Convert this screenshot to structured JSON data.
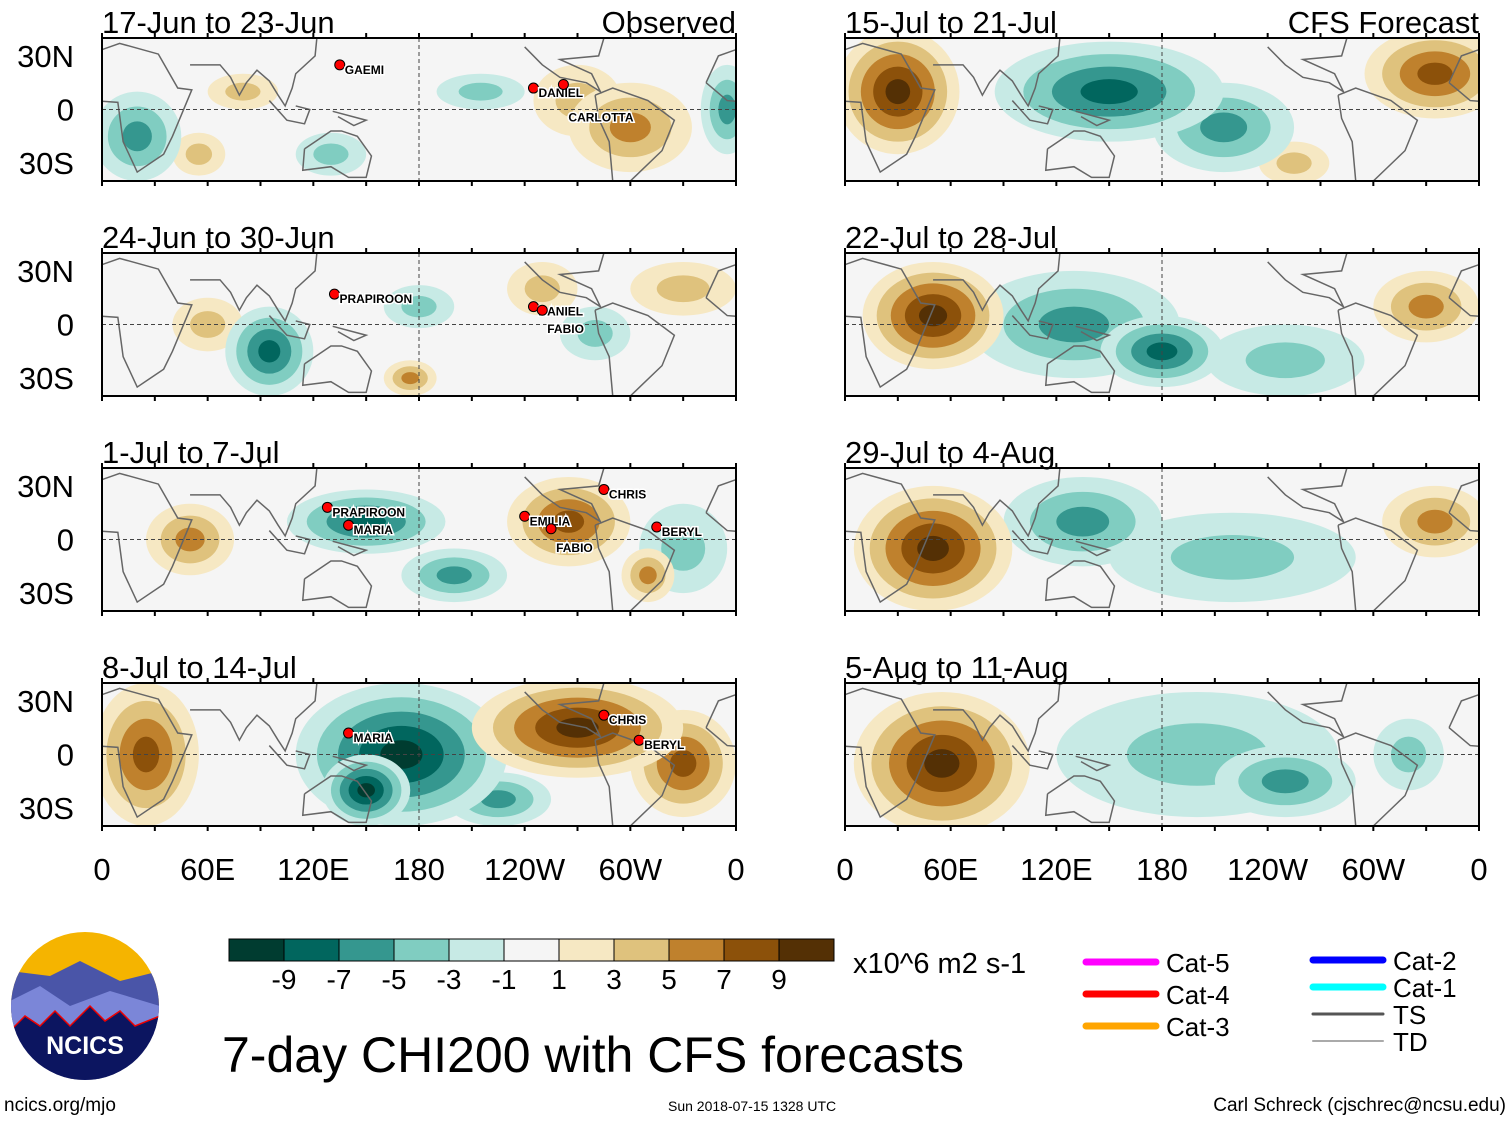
{
  "title": "7-day CHI200 with CFS forecasts",
  "site": "ncics.org/mjo",
  "timestamp": "Sun 2018-07-15 1328 UTC",
  "author": "Carl Schreck (cjschrec@ncsu.edu)",
  "logo_text": "NCICS",
  "units": "x10^6 m2 s-1",
  "left_header": "Observed",
  "right_header": "CFS Forecast",
  "lat_labels": [
    "30N",
    "0",
    "30S"
  ],
  "lon_labels": [
    "0",
    "60E",
    "120E",
    "180",
    "120W",
    "60W",
    "0"
  ],
  "colorbar": {
    "labels": [
      "-9",
      "-7",
      "-5",
      "-3",
      "-1",
      "1",
      "3",
      "5",
      "7",
      "9"
    ],
    "colors": [
      "#003c30",
      "#01665e",
      "#35978f",
      "#80cdc1",
      "#c7eae5",
      "#f5f5f5",
      "#f6e8c3",
      "#dfc27d",
      "#bf812d",
      "#8c510a",
      "#543005"
    ]
  },
  "legend": [
    {
      "label": "Cat-5",
      "color": "#ff00ff"
    },
    {
      "label": "Cat-4",
      "color": "#ff0000"
    },
    {
      "label": "Cat-3",
      "color": "#ffa500"
    },
    {
      "label": "Cat-2",
      "color": "#0000ff"
    },
    {
      "label": "Cat-1",
      "color": "#00ffff"
    },
    {
      "label": "TS",
      "color": "#555555"
    },
    {
      "label": "TD",
      "color": "#aaaaaa"
    }
  ],
  "chart_data": {
    "type": "heatmap",
    "lon_range": [
      0,
      360
    ],
    "lat_range": [
      -40,
      40
    ],
    "panels": [
      {
        "period": "17-Jun to 23-Jun",
        "blobs": [
          [
            20,
            -15,
            25,
            25,
            -5
          ],
          [
            355,
            0,
            15,
            25,
            -5
          ],
          [
            130,
            -25,
            20,
            12,
            -3
          ],
          [
            215,
            10,
            25,
            10,
            -3
          ],
          [
            300,
            -10,
            35,
            25,
            5
          ],
          [
            270,
            5,
            25,
            20,
            3
          ],
          [
            80,
            10,
            20,
            10,
            3
          ],
          [
            55,
            -25,
            15,
            12,
            3
          ]
        ],
        "storms": [
          {
            "name": "GAEMI",
            "lon": 135,
            "lat": 25
          },
          {
            "name": "DANIEL",
            "lon": 245,
            "lat": 12
          },
          {
            "name": "CARLOTTA",
            "lon": 262,
            "lat": 14
          }
        ]
      },
      {
        "period": "24-Jun to 30-Jun",
        "blobs": [
          [
            95,
            -15,
            25,
            25,
            -7
          ],
          [
            280,
            -5,
            20,
            15,
            -3
          ],
          [
            180,
            10,
            20,
            12,
            -3
          ],
          [
            60,
            0,
            20,
            15,
            3
          ],
          [
            175,
            -30,
            15,
            10,
            5
          ],
          [
            250,
            20,
            20,
            15,
            3
          ],
          [
            330,
            20,
            30,
            15,
            3
          ]
        ],
        "storms": [
          {
            "name": "PRAPIROON",
            "lon": 132,
            "lat": 17
          },
          {
            "name": "DANIEL",
            "lon": 245,
            "lat": 10
          },
          {
            "name": "FABIO",
            "lon": 250,
            "lat": 8
          }
        ]
      },
      {
        "period": "1-Jul to 7-Jul",
        "blobs": [
          [
            150,
            10,
            45,
            18,
            -7
          ],
          [
            200,
            -20,
            30,
            15,
            -5
          ],
          [
            330,
            -5,
            25,
            25,
            -3
          ],
          [
            265,
            10,
            35,
            25,
            7
          ],
          [
            50,
            0,
            25,
            20,
            5
          ],
          [
            310,
            -20,
            15,
            15,
            5
          ]
        ],
        "storms": [
          {
            "name": "CHRIS",
            "lon": 285,
            "lat": 28
          },
          {
            "name": "PRAPIROON",
            "lon": 128,
            "lat": 18
          },
          {
            "name": "MARIA",
            "lon": 140,
            "lat": 8
          },
          {
            "name": "EMILIA",
            "lon": 240,
            "lat": 13
          },
          {
            "name": "FABIO",
            "lon": 255,
            "lat": 6
          },
          {
            "name": "BERYL",
            "lon": 315,
            "lat": 7
          }
        ]
      },
      {
        "period": "8-Jul to 14-Jul",
        "blobs": [
          [
            170,
            0,
            60,
            40,
            -9
          ],
          [
            150,
            -20,
            25,
            20,
            -9
          ],
          [
            225,
            -25,
            30,
            15,
            -5
          ],
          [
            270,
            15,
            60,
            28,
            9
          ],
          [
            25,
            0,
            30,
            40,
            7
          ],
          [
            330,
            -5,
            30,
            30,
            7
          ]
        ],
        "storms": [
          {
            "name": "MARIA",
            "lon": 140,
            "lat": 12
          },
          {
            "name": "CHRIS",
            "lon": 285,
            "lat": 22
          },
          {
            "name": "BERYL",
            "lon": 305,
            "lat": 8
          }
        ]
      },
      {
        "period": "15-Jul to 21-Jul",
        "blobs": [
          [
            30,
            10,
            35,
            35,
            9
          ],
          [
            335,
            20,
            40,
            25,
            7
          ],
          [
            150,
            10,
            65,
            28,
            -7
          ],
          [
            215,
            -10,
            40,
            25,
            -5
          ],
          [
            255,
            -30,
            20,
            12,
            3
          ]
        ],
        "storms": []
      },
      {
        "period": "22-Jul to 28-Jul",
        "blobs": [
          [
            50,
            5,
            40,
            30,
            9
          ],
          [
            330,
            10,
            30,
            20,
            5
          ],
          [
            130,
            0,
            60,
            30,
            -5
          ],
          [
            180,
            -15,
            35,
            20,
            -7
          ],
          [
            250,
            -20,
            45,
            20,
            -3
          ]
        ],
        "storms": []
      },
      {
        "period": "29-Jul to 4-Aug",
        "blobs": [
          [
            50,
            -5,
            45,
            35,
            9
          ],
          [
            135,
            10,
            45,
            25,
            -5
          ],
          [
            220,
            -10,
            70,
            25,
            -3
          ],
          [
            335,
            10,
            30,
            20,
            5
          ]
        ],
        "storms": []
      },
      {
        "period": "5-Aug to 11-Aug",
        "blobs": [
          [
            55,
            -5,
            50,
            40,
            9
          ],
          [
            200,
            0,
            80,
            35,
            -3
          ],
          [
            250,
            -15,
            40,
            20,
            -5
          ],
          [
            320,
            0,
            20,
            20,
            -3
          ]
        ],
        "storms": []
      }
    ]
  }
}
